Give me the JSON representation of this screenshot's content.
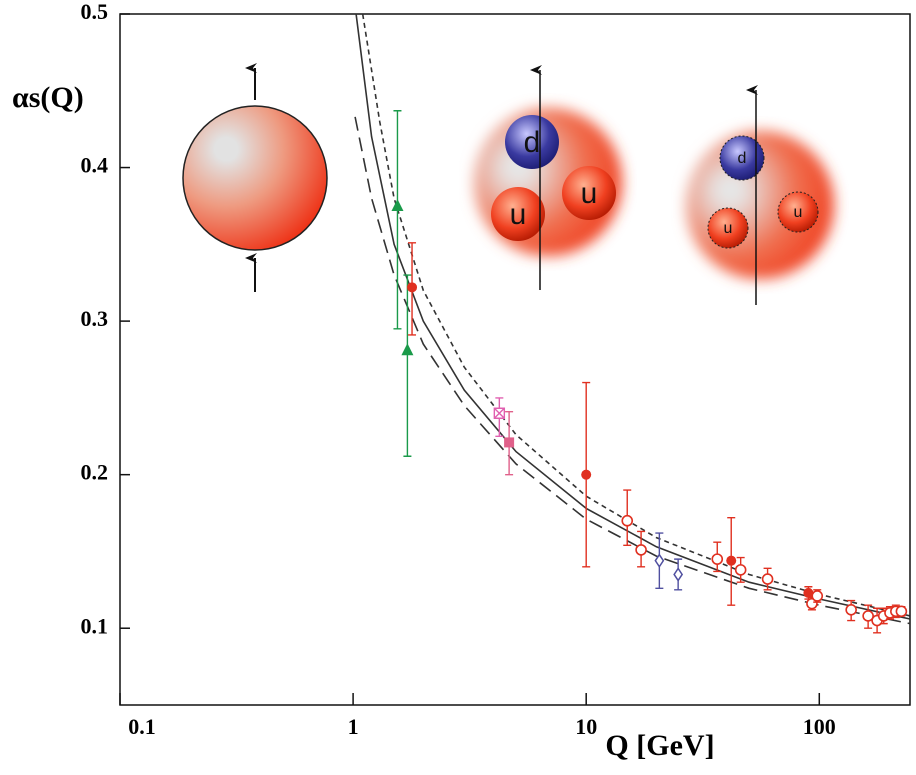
{
  "chart_data": {
    "type": "scatter",
    "xlabel": "Q [GeV]",
    "ylabel": "αs(Q)",
    "log_x": true,
    "xlim": [
      0.1,
      245
    ],
    "ylim": [
      0.05,
      0.5
    ],
    "xticks": [
      0.1,
      1,
      10,
      100
    ],
    "yticks": [
      0.1,
      0.2,
      0.3,
      0.4,
      0.5
    ],
    "series": [
      {
        "marker": "triangle",
        "color": "#1a9a4a",
        "x": [
          1.55,
          1.71
        ],
        "y": [
          0.375,
          0.281
        ],
        "low": [
          0.295,
          0.212
        ],
        "high": [
          0.437,
          0.33
        ]
      },
      {
        "marker": "circle",
        "color": "#e03020",
        "x": [
          1.79,
          10,
          41.9,
          89.8
        ],
        "y": [
          0.322,
          0.2,
          0.144,
          0.123
        ],
        "low": [
          0.291,
          0.14,
          0.115,
          0.119
        ],
        "high": [
          0.351,
          0.26,
          0.172,
          0.127
        ]
      },
      {
        "marker": "square-x",
        "color": "#e060b0",
        "x": [
          4.24
        ],
        "y": [
          0.24
        ],
        "low": [
          0.225
        ],
        "high": [
          0.25
        ]
      },
      {
        "marker": "square",
        "color": "#e0608a",
        "x": [
          4.67
        ],
        "y": [
          0.221
        ],
        "low": [
          0.2
        ],
        "high": [
          0.241
        ]
      },
      {
        "marker": "open-circle",
        "color": "#e03020",
        "x": [
          15,
          17.2,
          36.5,
          46,
          60,
          93,
          98,
          137,
          162,
          177,
          189,
          201,
          213,
          225
        ],
        "y": [
          0.17,
          0.151,
          0.145,
          0.138,
          0.132,
          0.116,
          0.121,
          0.112,
          0.108,
          0.105,
          0.108,
          0.11,
          0.111,
          0.111
        ],
        "low": [
          0.154,
          0.14,
          0.137,
          0.13,
          0.125,
          0.112,
          0.117,
          0.105,
          0.1,
          0.097,
          0.103,
          0.106,
          0.107,
          0.108
        ],
        "high": [
          0.19,
          0.163,
          0.156,
          0.146,
          0.139,
          0.12,
          0.125,
          0.118,
          0.115,
          0.113,
          0.113,
          0.114,
          0.115,
          0.114
        ]
      },
      {
        "marker": "diamond",
        "color": "#5050a0",
        "x": [
          20.6,
          24.8
        ],
        "y": [
          0.144,
          0.135
        ],
        "low": [
          0.126,
          0.125
        ],
        "high": [
          0.162,
          0.145
        ]
      }
    ],
    "curves": [
      {
        "dash": "none",
        "color": "#333333",
        "x": [
          1.03,
          1.2,
          1.5,
          2,
          3,
          5,
          10,
          20,
          50,
          100,
          245
        ],
        "y": [
          0.5,
          0.42,
          0.35,
          0.3,
          0.255,
          0.215,
          0.178,
          0.153,
          0.13,
          0.119,
          0.106
        ]
      },
      {
        "dash": "5,4",
        "color": "#333333",
        "x": [
          1.1,
          1.3,
          1.5,
          2,
          3,
          5,
          10,
          20,
          50,
          100,
          245
        ],
        "y": [
          0.5,
          0.43,
          0.38,
          0.32,
          0.27,
          0.226,
          0.186,
          0.159,
          0.135,
          0.122,
          0.108
        ]
      },
      {
        "dash": "14,7",
        "color": "#333333",
        "x": [
          1.02,
          1.2,
          1.5,
          2,
          3,
          5,
          10,
          20,
          50,
          100,
          245
        ],
        "y": [
          0.433,
          0.38,
          0.33,
          0.285,
          0.245,
          0.207,
          0.171,
          0.147,
          0.126,
          0.115,
          0.103
        ]
      }
    ],
    "annotations": [
      "d",
      "u",
      "u",
      "d",
      "u",
      "u"
    ]
  }
}
